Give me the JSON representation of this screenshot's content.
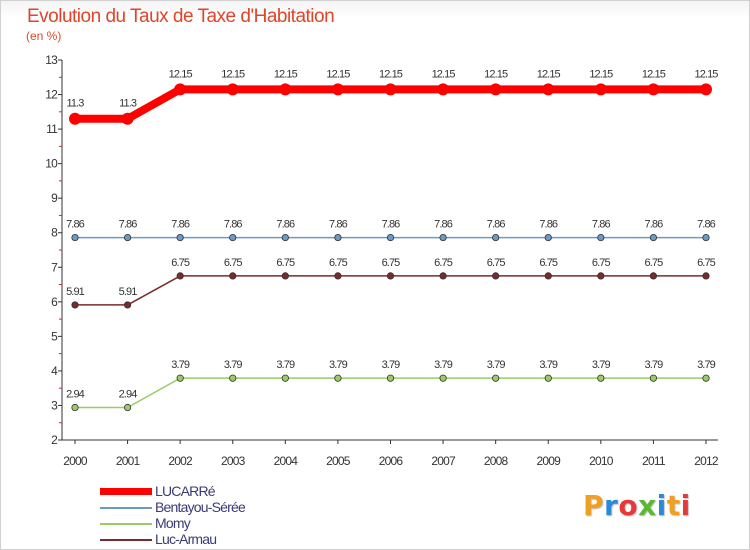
{
  "header": {
    "title": "Evolution du Taux de Taxe d'Habitation",
    "subtitle": "(en %)"
  },
  "brand": {
    "letters": [
      "P",
      "r",
      "o",
      "x",
      "i",
      "t",
      "i"
    ],
    "colors": [
      "#f0a020",
      "#2a8ad8",
      "#e53a3a",
      "#5cb833",
      "#2a8ad8",
      "#f0a020",
      "#e53a3a"
    ]
  },
  "chart_data": {
    "type": "line",
    "title": "Evolution du Taux de Taxe d'Habitation",
    "ylabel": "(en %)",
    "xlabel": "",
    "x": [
      "2000",
      "2001",
      "2002",
      "2003",
      "2004",
      "2005",
      "2006",
      "2007",
      "2008",
      "2009",
      "2010",
      "2011",
      "2012"
    ],
    "ylim": [
      2,
      13
    ],
    "yticks": [
      "2",
      "3",
      "4",
      "5",
      "6",
      "7",
      "8",
      "9",
      "10",
      "11",
      "12",
      "13"
    ],
    "grid": false,
    "legend_position": "bottom-left",
    "series": [
      {
        "name": "LUCARRé",
        "color": "#ff0000",
        "values": [
          11.3,
          11.3,
          12.15,
          12.15,
          12.15,
          12.15,
          12.15,
          12.15,
          12.15,
          12.15,
          12.15,
          12.15,
          12.15
        ],
        "labels": [
          "11.3",
          "11.3",
          "12.15",
          "12.15",
          "12.15",
          "12.15",
          "12.15",
          "12.15",
          "12.15",
          "12.15",
          "12.15",
          "12.15",
          "12.15"
        ]
      },
      {
        "name": "Bentayou-Sérée",
        "color": "#6b9ac4",
        "values": [
          7.86,
          7.86,
          7.86,
          7.86,
          7.86,
          7.86,
          7.86,
          7.86,
          7.86,
          7.86,
          7.86,
          7.86,
          7.86
        ],
        "labels": [
          "7.86",
          "7.86",
          "7.86",
          "7.86",
          "7.86",
          "7.86",
          "7.86",
          "7.86",
          "7.86",
          "7.86",
          "7.86",
          "7.86",
          "7.86"
        ]
      },
      {
        "name": "Momy",
        "color": "#99cc66",
        "values": [
          2.94,
          2.94,
          3.79,
          3.79,
          3.79,
          3.79,
          3.79,
          3.79,
          3.79,
          3.79,
          3.79,
          3.79,
          3.79
        ],
        "labels": [
          "2.94",
          "2.94",
          "3.79",
          "3.79",
          "3.79",
          "3.79",
          "3.79",
          "3.79",
          "3.79",
          "3.79",
          "3.79",
          "3.79",
          "3.79"
        ]
      },
      {
        "name": "Luc-Armau",
        "color": "#7a2a2a",
        "values": [
          5.91,
          5.91,
          6.75,
          6.75,
          6.75,
          6.75,
          6.75,
          6.75,
          6.75,
          6.75,
          6.75,
          6.75,
          6.75
        ],
        "labels": [
          "5.91",
          "5.91",
          "6.75",
          "6.75",
          "6.75",
          "6.75",
          "6.75",
          "6.75",
          "6.75",
          "6.75",
          "6.75",
          "6.75",
          "6.75"
        ]
      }
    ]
  }
}
